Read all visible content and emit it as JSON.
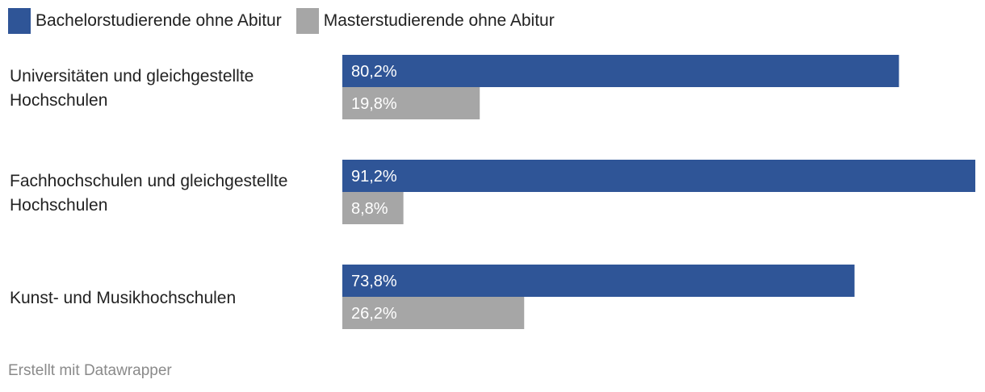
{
  "chart_data": {
    "type": "bar",
    "orientation": "horizontal",
    "categories": [
      [
        "Universitäten und gleichgestellte",
        "Hochschulen"
      ],
      [
        "Fachhochschulen und gleichgestellte",
        "Hochschulen"
      ],
      [
        "Kunst- und Musikhochschulen"
      ]
    ],
    "series": [
      {
        "name": "Bachelorstudierende ohne Abitur",
        "color": "#2f5597",
        "values": [
          80.2,
          91.2,
          73.8
        ],
        "labels": [
          "80,2%",
          "91,2%",
          "73,8%"
        ]
      },
      {
        "name": "Masterstudierende ohne Abitur",
        "color": "#a6a6a6",
        "values": [
          19.8,
          8.8,
          26.2
        ],
        "labels": [
          "19,8%",
          "8,8%",
          "26,2%"
        ]
      }
    ],
    "xlim": [
      0,
      91.2
    ],
    "grid": false,
    "legend_position": "top-left"
  },
  "footer": {
    "credit": "Erstellt mit Datawrapper"
  }
}
